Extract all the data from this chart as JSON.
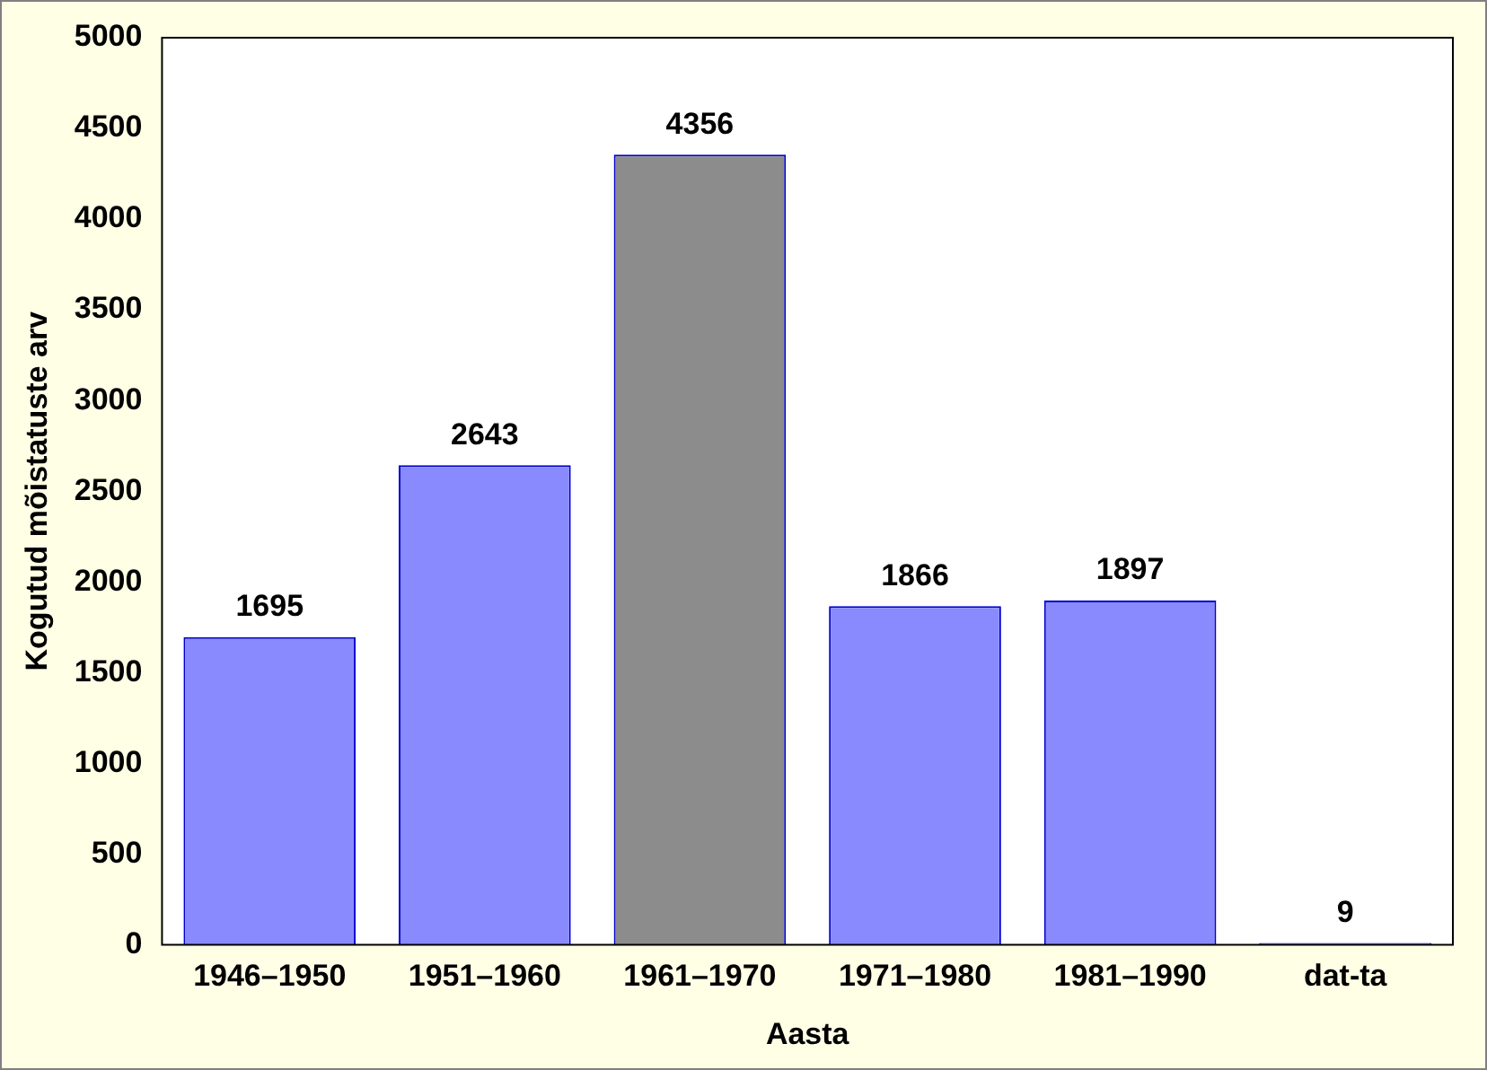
{
  "chart_data": {
    "type": "bar",
    "xlabel": "Aasta",
    "ylabel": "Kogutud mõistatuste arv",
    "categories": [
      "1946–1950",
      "1951–1960",
      "1961–1970",
      "1971–1980",
      "1981–1990",
      "dat-ta"
    ],
    "values": [
      1695,
      2643,
      4356,
      1866,
      1897,
      9
    ],
    "colors": [
      "#8a8aff",
      "#8a8aff",
      "#8c8c8c",
      "#8a8aff",
      "#8a8aff",
      "#8a8aff"
    ],
    "ylim": [
      0,
      5000
    ],
    "yticks": [
      0,
      500,
      1000,
      1500,
      2000,
      2500,
      3000,
      3500,
      4000,
      4500,
      5000
    ],
    "grid": false,
    "legend": false,
    "data_labels": true
  }
}
